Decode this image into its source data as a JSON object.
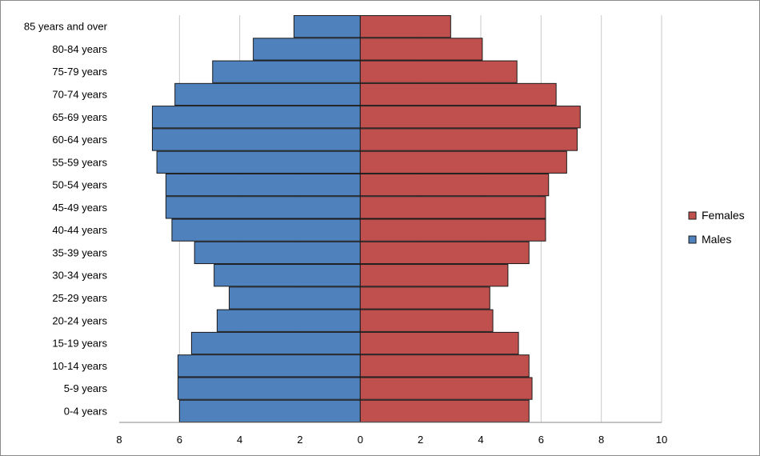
{
  "chart_data": {
    "type": "bar",
    "orientation": "horizontal",
    "diverging": true,
    "categories": [
      "0-4 years",
      "5-9 years",
      "10-14 years",
      "15-19 years",
      "20-24 years",
      "25-29 years",
      "30-34 years",
      "35-39 years",
      "40-44 years",
      "45-49 years",
      "50-54 years",
      "55-59 years",
      "60-64 years",
      "65-69 years",
      "70-74 years",
      "75-79 years",
      "80-84 years",
      "85 years and over"
    ],
    "series": [
      {
        "name": "Males",
        "color": "#4f81bd",
        "direction": "left",
        "values": [
          6.0,
          6.05,
          6.05,
          5.6,
          4.75,
          4.35,
          4.85,
          5.5,
          6.25,
          6.45,
          6.45,
          6.75,
          6.9,
          6.9,
          6.15,
          4.9,
          3.55,
          2.2
        ]
      },
      {
        "name": "Females",
        "color": "#c0504d",
        "direction": "right",
        "values": [
          5.6,
          5.7,
          5.6,
          5.25,
          4.4,
          4.3,
          4.9,
          5.6,
          6.15,
          6.15,
          6.25,
          6.85,
          7.2,
          7.3,
          6.5,
          5.2,
          4.05,
          3.0
        ]
      }
    ],
    "x_ticks": [
      "8",
      "6",
      "4",
      "2",
      "0",
      "2",
      "4",
      "6",
      "8",
      "10"
    ],
    "xlim": [
      -8,
      10
    ],
    "grid": "vertical",
    "legend": "right",
    "title": "",
    "xlabel": "",
    "ylabel": ""
  }
}
